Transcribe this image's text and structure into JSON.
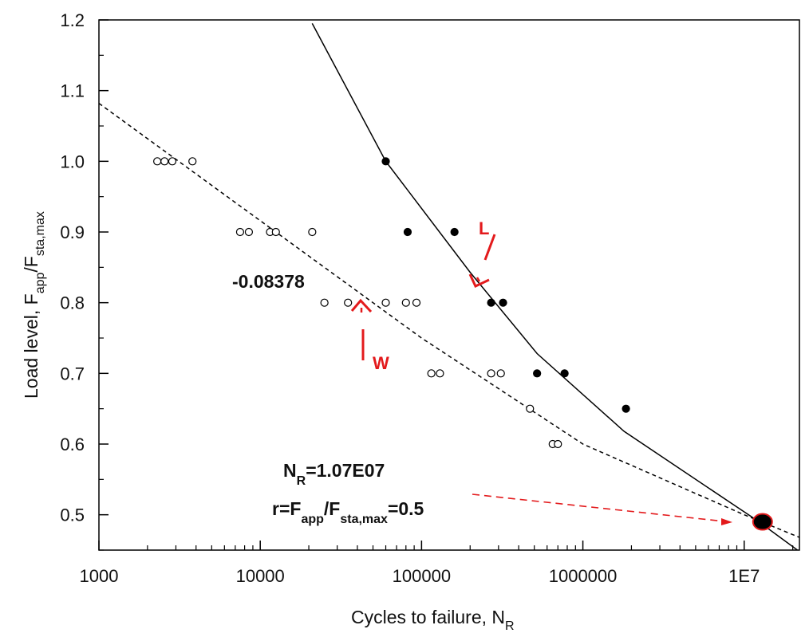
{
  "chart_data": {
    "type": "scatter",
    "title": "",
    "xlabel": "Cycles to failure, N",
    "xlabel_sub": "R",
    "ylabel": {
      "main": "Load level, F",
      "sub1": "app",
      "mid": "/F",
      "sub2": "sta,max"
    },
    "x_scale": "log",
    "xlim": [
      1000,
      22000000
    ],
    "ylim": [
      0.45,
      1.2
    ],
    "grid": false,
    "x_ticks": [
      {
        "value": 1000,
        "label": "1000"
      },
      {
        "value": 10000,
        "label": "10000"
      },
      {
        "value": 100000,
        "label": "100000"
      },
      {
        "value": 1000000,
        "label": "1000000"
      },
      {
        "value": 10000000,
        "label": "1E7"
      }
    ],
    "y_ticks": [
      {
        "value": 0.5,
        "label": "0.5"
      },
      {
        "value": 0.6,
        "label": "0.6"
      },
      {
        "value": 0.7,
        "label": "0.7"
      },
      {
        "value": 0.8,
        "label": "0.8"
      },
      {
        "value": 0.9,
        "label": "0.9"
      },
      {
        "value": 1.0,
        "label": "1.0"
      },
      {
        "value": 1.1,
        "label": "1.1"
      },
      {
        "value": 1.2,
        "label": "1.2"
      }
    ],
    "y_minor_ticks": [
      0.45,
      0.55,
      0.65,
      0.75,
      0.85,
      0.95,
      1.05,
      1.15
    ],
    "series": [
      {
        "marker": "open-circle",
        "points": [
          [
            2300,
            1.0
          ],
          [
            2550,
            1.0
          ],
          [
            2850,
            1.0
          ],
          [
            3800,
            1.0
          ],
          [
            7500,
            0.9
          ],
          [
            8500,
            0.9
          ],
          [
            11500,
            0.9
          ],
          [
            12500,
            0.9
          ],
          [
            21000,
            0.9
          ],
          [
            25000,
            0.8
          ],
          [
            35000,
            0.8
          ],
          [
            60000,
            0.8
          ],
          [
            80000,
            0.8
          ],
          [
            93000,
            0.8
          ],
          [
            115000,
            0.7
          ],
          [
            130000,
            0.7
          ],
          [
            270000,
            0.7
          ],
          [
            310000,
            0.7
          ],
          [
            470000,
            0.65
          ],
          [
            650000,
            0.6
          ],
          [
            700000,
            0.6
          ]
        ]
      },
      {
        "marker": "filled-circle",
        "points": [
          [
            60000,
            1.0
          ],
          [
            82000,
            0.9
          ],
          [
            160000,
            0.9
          ],
          [
            270000,
            0.8
          ],
          [
            320000,
            0.8
          ],
          [
            520000,
            0.7
          ],
          [
            770000,
            0.7
          ],
          [
            1850000,
            0.65
          ]
        ]
      },
      {
        "style": "dashed",
        "points": [
          [
            1000,
            1.082
          ],
          [
            10000,
            0.916
          ],
          [
            50000,
            0.8
          ],
          [
            100000,
            0.75
          ],
          [
            1000000,
            0.6
          ],
          [
            10000000,
            0.5
          ],
          [
            22000000,
            0.468
          ]
        ]
      },
      {
        "style": "solid",
        "points": [
          [
            21000,
            1.195
          ],
          [
            60000,
            1.0
          ],
          [
            200000,
            0.843
          ],
          [
            520000,
            0.728
          ],
          [
            1800000,
            0.618
          ],
          [
            12000000,
            0.492
          ],
          [
            22000000,
            0.448
          ]
        ]
      }
    ],
    "highlight_point": {
      "x": 13000000,
      "y": 0.49,
      "fill": "#000000",
      "stroke": "#e31a1c"
    },
    "annotations": {
      "slope": "-0.08378",
      "nr_main": "N",
      "nr_sub": "R",
      "nr_value": "=1.07E07",
      "r_main": "r=F",
      "r_sub1": "app",
      "r_mid": "/F",
      "r_sub2": "sta,max",
      "r_value": "=0.5",
      "label_w": "W",
      "label_l": "L"
    },
    "colors": {
      "axis": "#000000",
      "annotation": "#e31a1c"
    }
  }
}
